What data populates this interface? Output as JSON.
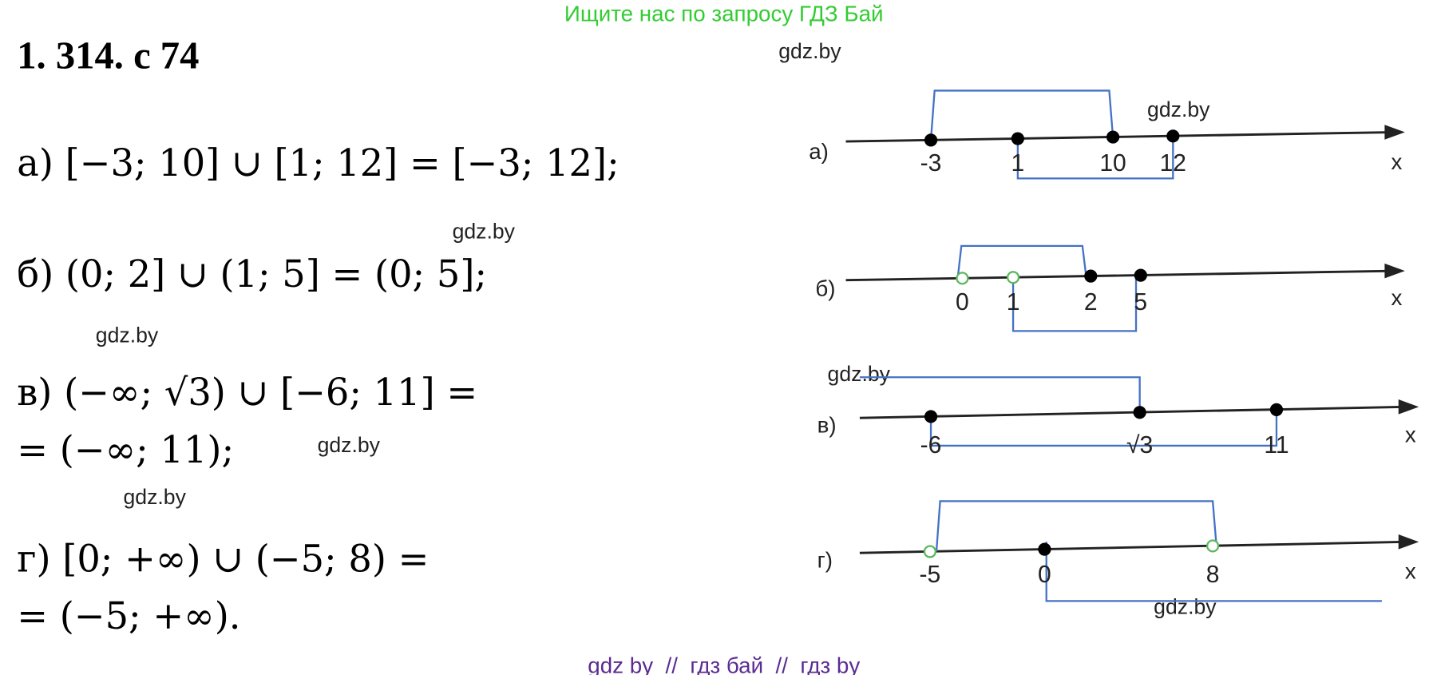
{
  "header": {
    "banner": "Ищите нас по запросу ГДЗ Бай",
    "title": "1. 314. с 74"
  },
  "solutions": [
    {
      "lines": [
        "а) [−3; 10] ∪ [1; 12] = [−3; 12];"
      ]
    },
    {
      "lines": [
        "б) (0; 2] ∪ (1; 5] = (0; 5];"
      ]
    },
    {
      "lines": [
        "в) (−∞; √3) ∪ [−6; 11] =",
        "= (−∞; 11);"
      ]
    },
    {
      "lines": [
        "г) [0; +∞) ∪ (−5; 8) =",
        "= (−5; +∞)."
      ]
    }
  ],
  "diagrams": [
    {
      "label": "а)",
      "axis": "x",
      "points": [
        "-3",
        "1",
        "10",
        "12"
      ]
    },
    {
      "label": "б)",
      "axis": "x",
      "points": [
        "0",
        "1",
        "2",
        "5"
      ]
    },
    {
      "label": "в)",
      "axis": "x",
      "points": [
        "-6",
        "√3",
        "11"
      ]
    },
    {
      "label": "г)",
      "axis": "x",
      "points": [
        "-5",
        "0",
        "8"
      ]
    }
  ],
  "watermarks": [
    "gdz.by",
    "gdz.by",
    "gdz.by",
    "gdz.by",
    "gdz.by",
    "gdz.by",
    "gdz.by",
    "gdz.by"
  ],
  "footer": "gdz by  //  гдз бай  //  гдз by"
}
